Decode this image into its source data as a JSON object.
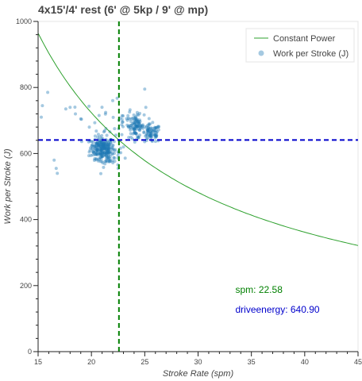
{
  "chart_data": {
    "type": "scatter",
    "title": "4x15'/4' rest (6' @ 5kp / 9' @ mp)",
    "xlabel": "Stroke Rate (spm)",
    "ylabel": "Work per Stroke (J)",
    "xlim": [
      15,
      45
    ],
    "ylim": [
      0,
      1000
    ],
    "x_ticks": [
      15,
      20,
      25,
      30,
      35,
      40,
      45
    ],
    "y_ticks": [
      0,
      200,
      400,
      600,
      800,
      1000
    ],
    "legend": {
      "placement": "top-right",
      "entries": [
        {
          "label": "Constant Power",
          "kind": "line",
          "color": "#2ca02c"
        },
        {
          "label": "Work per Stroke (J)",
          "kind": "marker",
          "color": "#1f77b4"
        }
      ]
    },
    "series": [
      {
        "name": "Work per Stroke (J)",
        "kind": "scatter",
        "color": "#1f77b4",
        "clusters": [
          {
            "cx": 21.0,
            "cy": 618,
            "sx": 0.55,
            "sy": 16,
            "n": 210
          },
          {
            "cx": 21.5,
            "cy": 590,
            "sx": 0.6,
            "sy": 15,
            "n": 60
          },
          {
            "cx": 24.2,
            "cy": 682,
            "sx": 0.35,
            "sy": 18,
            "n": 90
          },
          {
            "cx": 25.6,
            "cy": 660,
            "sx": 0.45,
            "sy": 14,
            "n": 80
          },
          {
            "cx": 23.5,
            "cy": 700,
            "sx": 0.6,
            "sy": 25,
            "n": 25
          },
          {
            "cx": 21.3,
            "cy": 710,
            "sx": 1.0,
            "sy": 30,
            "n": 18
          }
        ],
        "outliers": [
          [
            15.9,
            785
          ],
          [
            15.4,
            745
          ],
          [
            15.3,
            710
          ],
          [
            16.5,
            580
          ],
          [
            16.7,
            555
          ],
          [
            16.8,
            540
          ],
          [
            18.0,
            740
          ],
          [
            18.5,
            720
          ],
          [
            19.0,
            705
          ],
          [
            22.0,
            760
          ],
          [
            25.0,
            795
          ],
          [
            25.1,
            740
          ],
          [
            19.8,
            680
          ],
          [
            17.6,
            735
          ],
          [
            23.0,
            620
          ],
          [
            22.5,
            555
          ]
        ]
      },
      {
        "name": "Constant Power",
        "kind": "line",
        "color": "#2ca02c",
        "power_per_minute": 14467,
        "x_range": [
          15,
          45
        ]
      }
    ],
    "reference_lines": [
      {
        "orientation": "vertical",
        "value": 22.58,
        "color": "#008000",
        "style": "dashed"
      },
      {
        "orientation": "horizontal",
        "value": 640.9,
        "color": "#0000cc",
        "style": "dashed"
      }
    ],
    "annotations": [
      {
        "text": "spm:  22.58",
        "x": 33.5,
        "y": 178,
        "color": "#008000"
      },
      {
        "text": "driveenergy: 640.90",
        "x": 33.5,
        "y": 118,
        "color": "#0000cc"
      }
    ]
  }
}
